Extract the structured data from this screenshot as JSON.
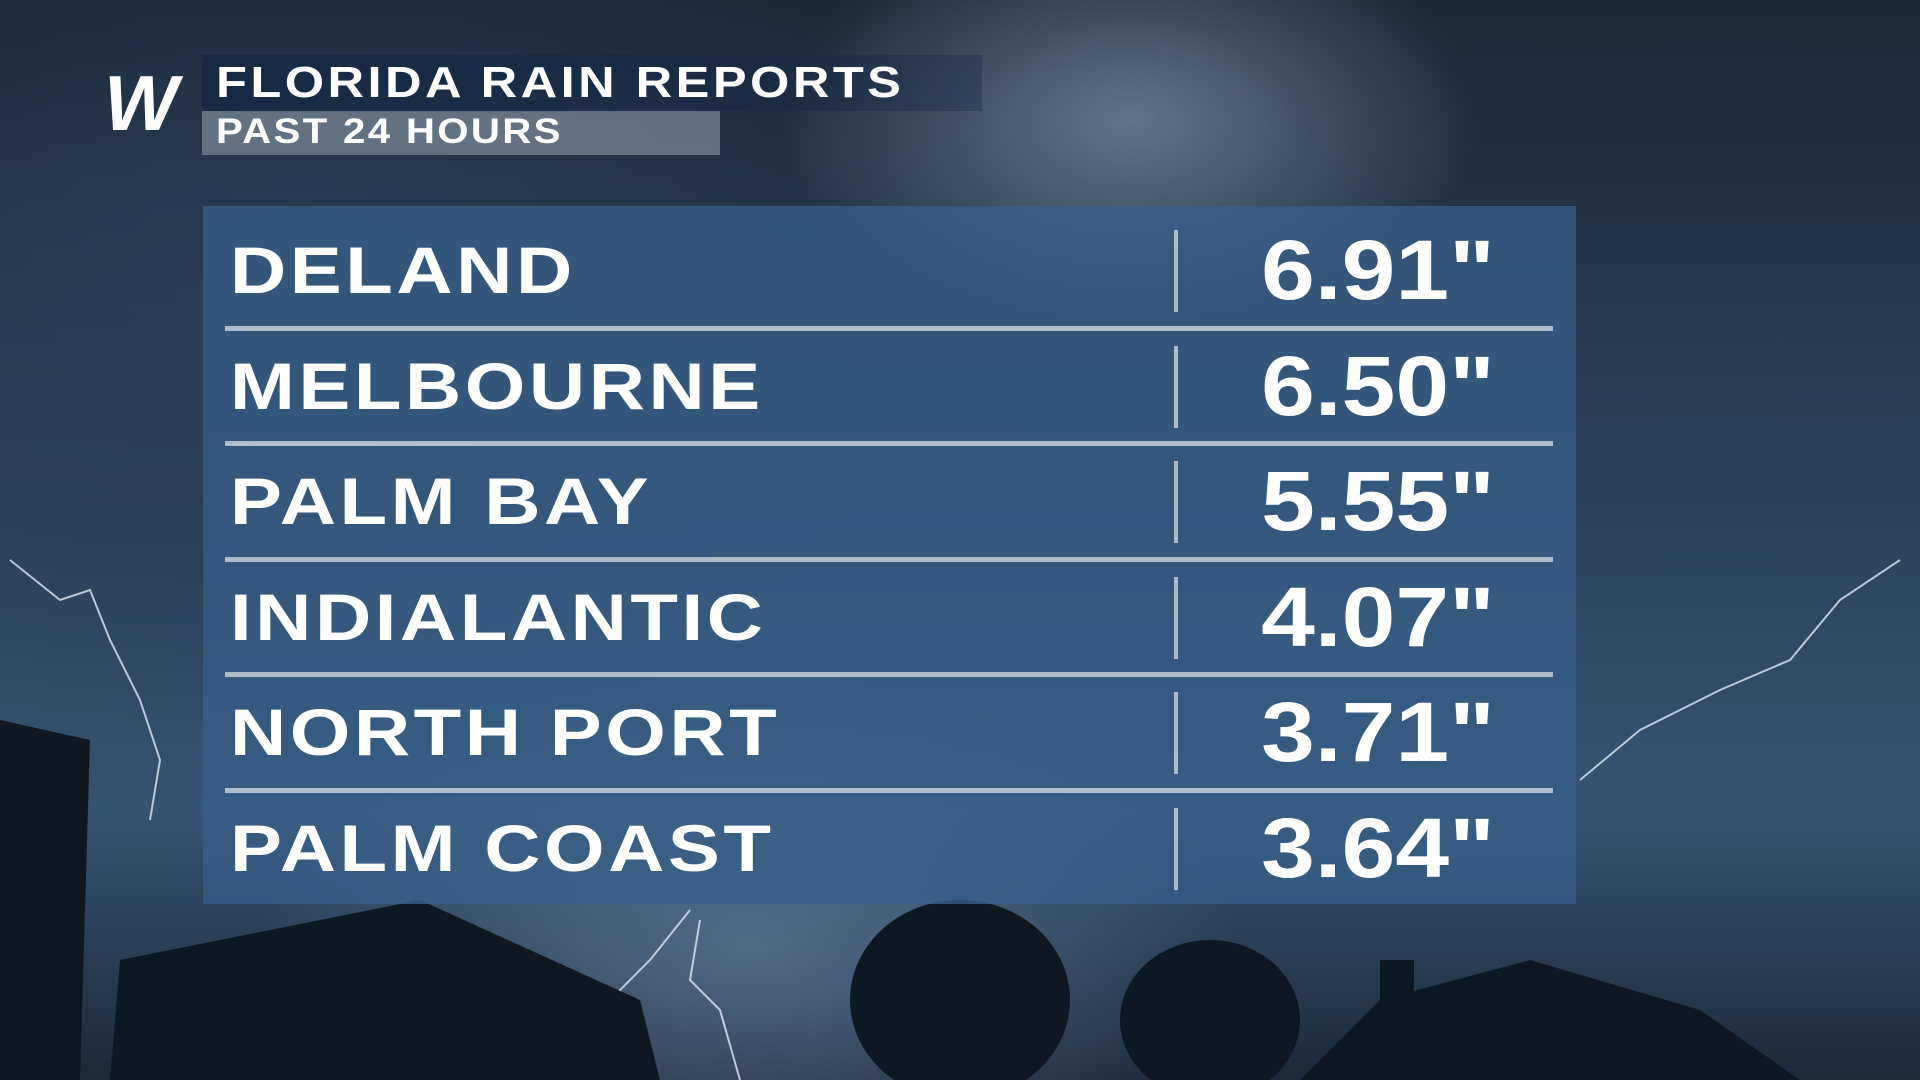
{
  "header": {
    "logo": "W",
    "title": "FLORIDA RAIN REPORTS",
    "subtitle": "PAST 24 HOURS"
  },
  "table": {
    "rows": [
      [
        "DELAND",
        "6.91\""
      ],
      [
        "MELBOURNE",
        "6.50\""
      ],
      [
        "PALM BAY",
        "5.55\""
      ],
      [
        "INDIALANTIC",
        "4.07\""
      ],
      [
        "NORTH PORT",
        "3.71\""
      ],
      [
        "PALM COAST",
        "3.64\""
      ]
    ]
  }
}
